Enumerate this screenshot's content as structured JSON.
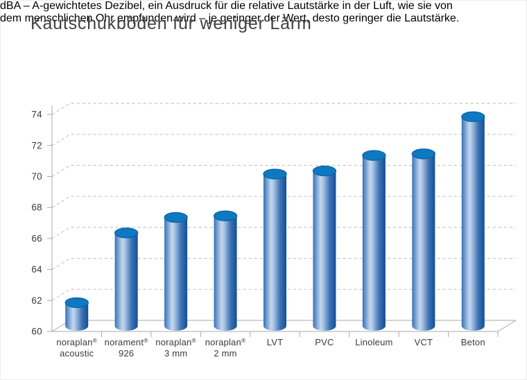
{
  "header": {
    "title": "Kautschukböden für weniger Lärm",
    "subtitle_line1": "dBA – A-gewichtetes Dezibel, ein Ausdruck für die relative Lautstärke in der Luft, wie sie von",
    "subtitle_line2": "dem menschlichen Ohr empfunden wird – je geringer der Wert, desto geringer die Lautstärke."
  },
  "chart_data": {
    "type": "bar",
    "style": "3d-cylinder",
    "title": "Kautschukböden für weniger Lärm",
    "unit": "dBA",
    "categories": [
      "noraplan® acoustic",
      "norament® 926",
      "noraplan® 3 mm",
      "noraplan® 2 mm",
      "LVT",
      "PVC",
      "Linoleum",
      "VCT",
      "Beton"
    ],
    "category_lines": [
      [
        "noraplan®",
        "acoustic"
      ],
      [
        "norament®",
        "926"
      ],
      [
        "noraplan®",
        "3 mm"
      ],
      [
        "noraplan®",
        "2 mm"
      ],
      [
        "LVT"
      ],
      [
        "PVC"
      ],
      [
        "Linoleum"
      ],
      [
        "VCT"
      ],
      [
        "Beton"
      ]
    ],
    "values": [
      61.5,
      66.0,
      67.0,
      67.1,
      69.8,
      70.0,
      71.0,
      71.1,
      73.5
    ],
    "ylim": [
      60,
      74
    ],
    "yticks": [
      60,
      62,
      64,
      66,
      68,
      70,
      72,
      74
    ],
    "xlabel": "",
    "ylabel": "",
    "grid": "horizontal dashed, pseudo-3d back wall",
    "legend": "none",
    "colors": {
      "cylinder_top": "#0d79c1",
      "cylinder_top_stroke": "#0a61a8",
      "body_edge_left": "#2a66ad",
      "body_light1": "#4c84c2",
      "body_highlight": "#c3d6ee",
      "body_mid": "#3f74b4",
      "body_right": "#124f98",
      "gridline": "#c9c9c9",
      "axis": "#a8a8a8",
      "text": "#3a3a3a"
    }
  }
}
